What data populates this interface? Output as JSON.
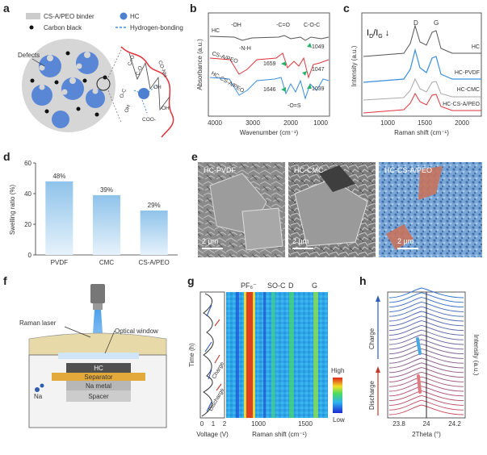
{
  "panels": {
    "a": {
      "label": "a",
      "legend": {
        "binder": "CS-A/PEO binder",
        "hc": "HC",
        "carbon_black": "Carbon black",
        "hbond": "Hydrogen-bonding"
      },
      "defects": "Defects",
      "chem": [
        "C=O",
        "CO-NH",
        "C-O",
        "O-C",
        "OH",
        "OH",
        "COO-",
        "OH"
      ]
    },
    "b": {
      "label": "b",
      "ylabel": "Absorbance (a.u.)",
      "xlabel": "Wavenumber (cm⁻¹)",
      "ticks": [
        "4000",
        "3000",
        "2000",
        "1000"
      ],
      "series": [
        "HC",
        "CS-A/PEO",
        "HC-CS-A/PEO"
      ],
      "annotations": [
        "-OH",
        "-N-H",
        "-C=O",
        "C-O-C",
        "1659",
        "1049",
        "1047",
        "1646",
        "1039",
        "-O=S"
      ]
    },
    "c": {
      "label": "c",
      "ylabel": "Intensity (a.u.)",
      "xlabel": "Raman shift (cm⁻¹)",
      "ticks": [
        "1000",
        "1500",
        "2000"
      ],
      "peaks": [
        "D",
        "G"
      ],
      "ratio": "I",
      "ratio_sub_d": "D",
      "ratio_sub_g": "G",
      "series": [
        "HC",
        "HC-PVDF",
        "HC-CMC",
        "HC-CS-A/PEO"
      ]
    },
    "d": {
      "label": "d",
      "ylabel": "Swelling ratio (%)",
      "yticks": [
        "0",
        "20",
        "40",
        "60"
      ]
    },
    "e": {
      "label": "e",
      "images": [
        {
          "title": "HC-PVDF",
          "scale": "2 μm"
        },
        {
          "title": "HC-CMC",
          "scale": "2 μm"
        },
        {
          "title": "HC-CS-A/PEO",
          "scale": "2 μm"
        }
      ]
    },
    "f": {
      "label": "f",
      "labels": {
        "laser": "Raman laser",
        "window": "Optical window",
        "hc": "HC",
        "separator": "Separator",
        "na_metal": "Na metal",
        "spacer": "Spacer",
        "na": "Na"
      }
    },
    "g": {
      "label": "g",
      "ylabel": "Time (h)",
      "xlabel_left": "Voltage (V)",
      "xlabel_right": "Raman shift (cm⁻¹)",
      "vticks": [
        "0",
        "1",
        "2"
      ],
      "rticks": [
        "1000",
        "1500"
      ],
      "headers": [
        "PF₆⁻",
        "SO-C",
        "D",
        "G"
      ],
      "charge": "Charge",
      "discharge": "Discharge",
      "colorbar": {
        "high": "High",
        "low": "Low"
      }
    },
    "h": {
      "label": "h",
      "xlabel": "2Theta (°)",
      "ylabel": "Intensity (a.u.)",
      "xticks": [
        "23.8",
        "24",
        "24.2"
      ],
      "charge": "Charge",
      "discharge": "Discharge"
    }
  },
  "chart_data": [
    {
      "type": "bar",
      "categories": [
        "PVDF",
        "CMC",
        "CS-A/PEO"
      ],
      "values": [
        48,
        39,
        29
      ],
      "value_labels": [
        "48%",
        "39%",
        "29%"
      ],
      "ylabel": "Swelling ratio (%)",
      "ylim": [
        0,
        60
      ],
      "color": "#8fc3ea"
    }
  ]
}
